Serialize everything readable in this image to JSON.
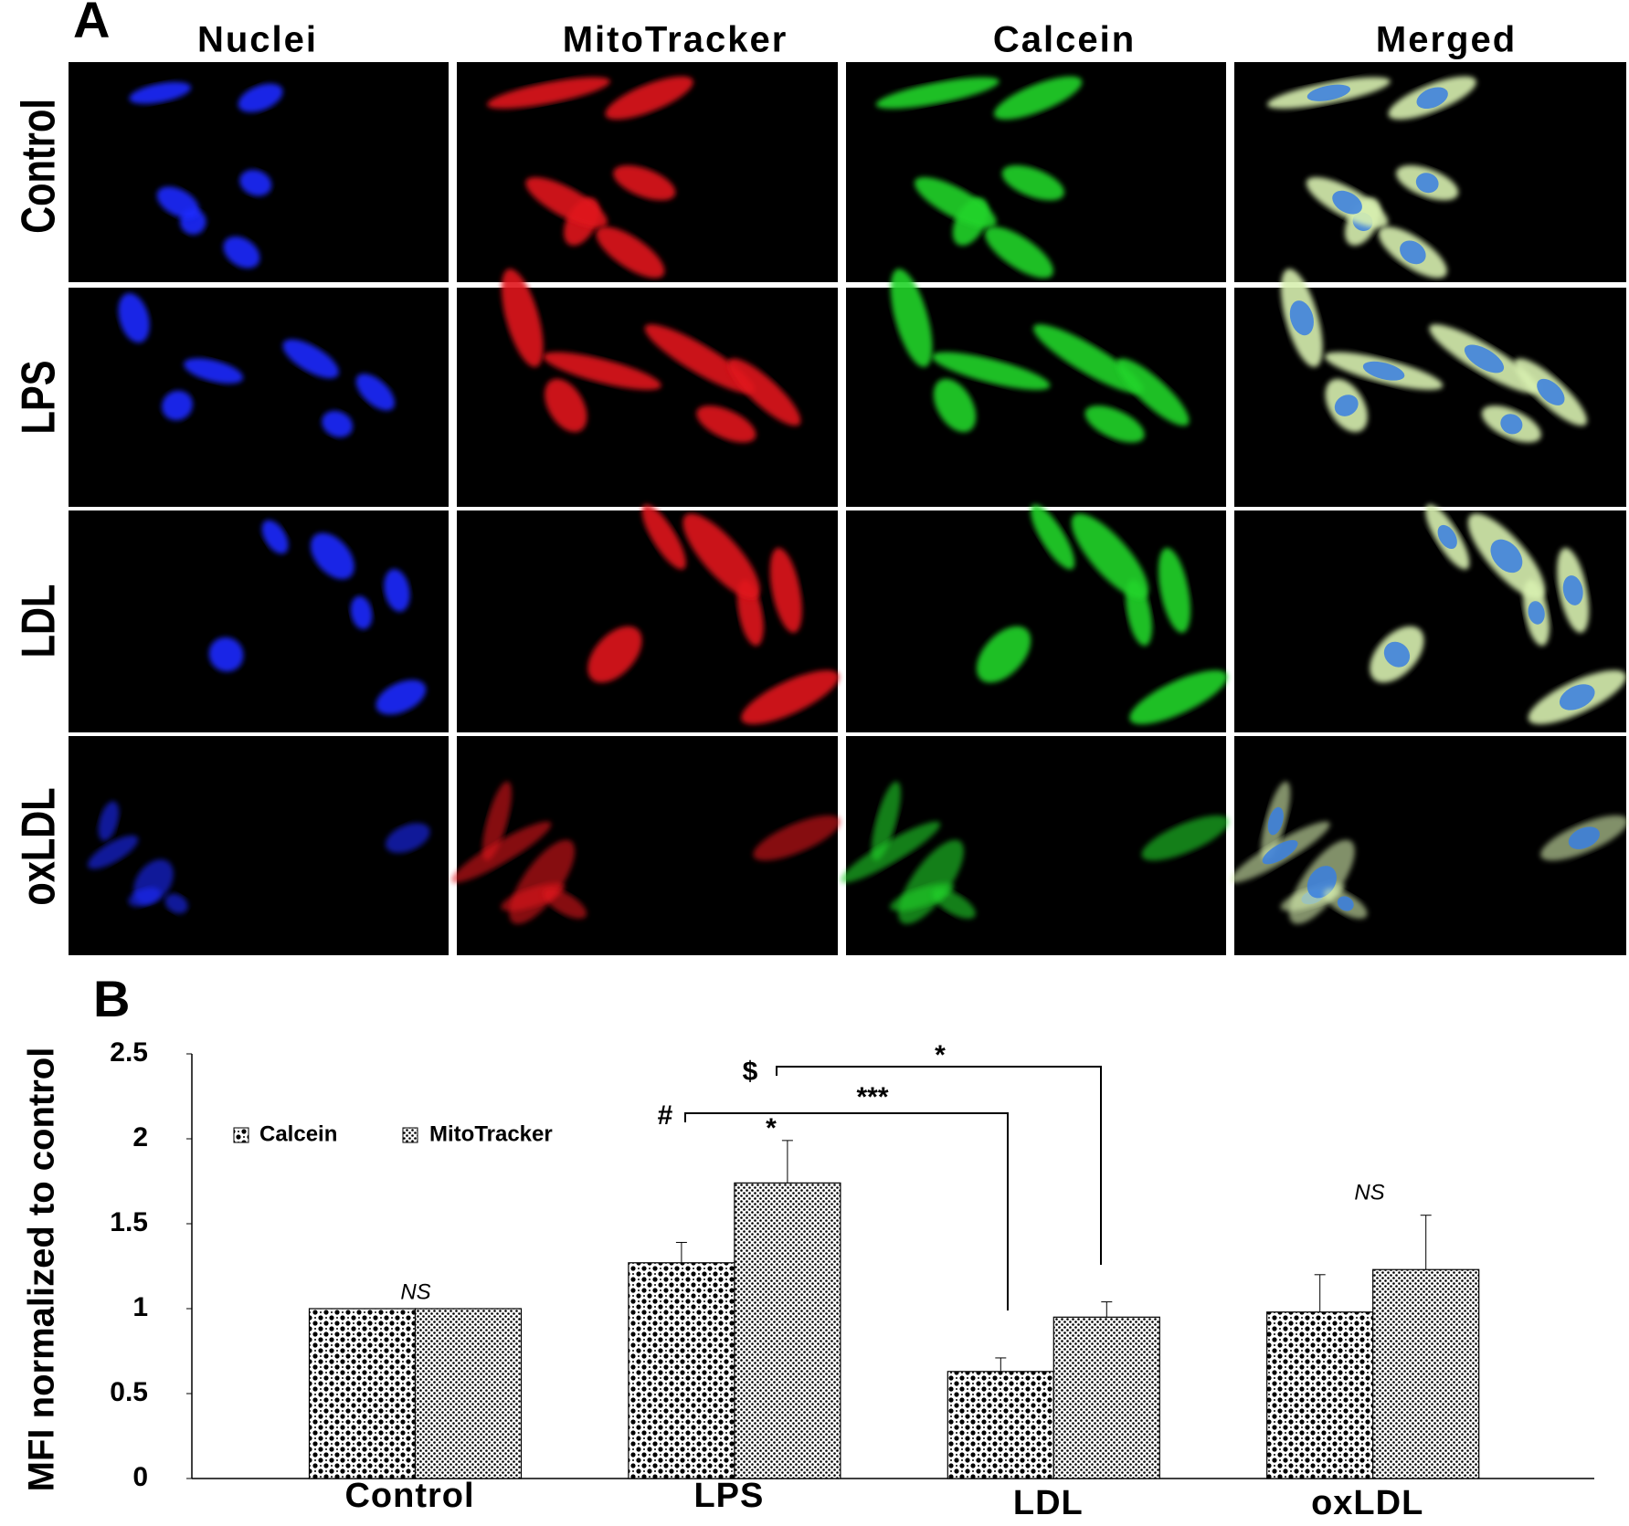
{
  "panel_a": {
    "label": "A",
    "columns": [
      "Nuclei",
      "MitoTracker",
      "Calcein",
      "Merged"
    ],
    "rows": [
      "Control",
      "LPS",
      "LDL",
      "oxLDL"
    ]
  },
  "chart_data": {
    "type": "bar",
    "panel_label": "B",
    "y_label": "MFI normalized to control",
    "categories": [
      "Control",
      "LPS",
      "LDL",
      "oxLDL"
    ],
    "series": [
      {
        "name": "Calcein",
        "color": "#000000",
        "values": [
          1.0,
          1.27,
          0.63,
          0.98
        ],
        "errors": [
          0,
          0.12,
          0.08,
          0.22
        ]
      },
      {
        "name": "MitoTracker",
        "color": "#000000",
        "values": [
          1.0,
          1.74,
          0.95,
          1.23
        ],
        "errors": [
          0,
          0.25,
          0.09,
          0.32
        ]
      }
    ],
    "ylim": [
      0,
      2.5
    ],
    "yticks": [
      0,
      0.5,
      1,
      1.5,
      2,
      2.5
    ],
    "grid": false,
    "legend": "upper left",
    "annotations": [
      "NS",
      "*",
      "#",
      "***",
      "$",
      "*",
      "NS"
    ]
  }
}
